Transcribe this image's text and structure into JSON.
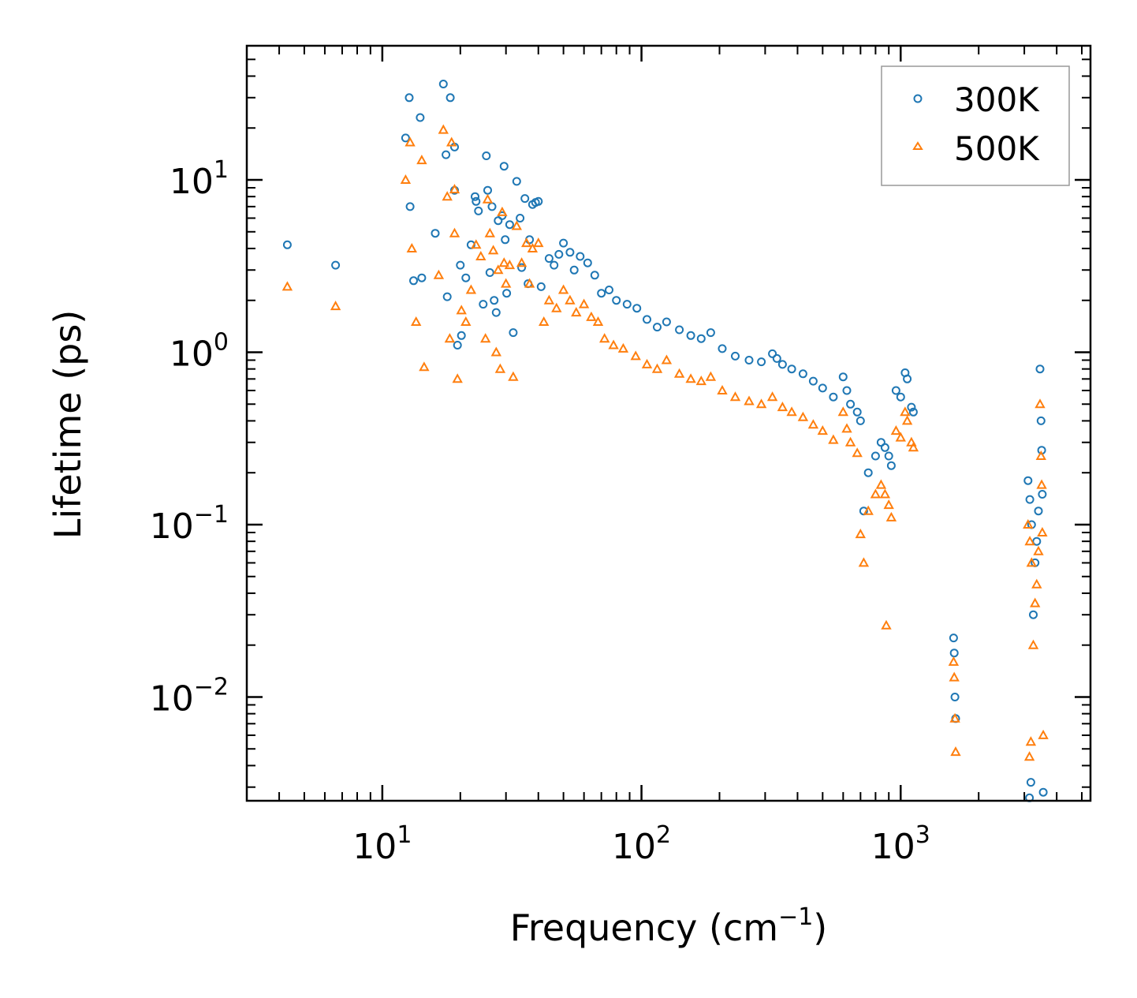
{
  "chart_data": {
    "type": "scatter",
    "title": "",
    "xlabel": "Frequency (cm",
    "xlabel_sup": "−1",
    "xlabel_end": ")",
    "ylabel": "Lifetime (ps)",
    "xscale": "log",
    "yscale": "log",
    "xlim": [
      3.0,
      5400
    ],
    "ylim": [
      0.0025,
      60
    ],
    "x_ticks": [
      {
        "value": 10,
        "base": "10",
        "exp": "1"
      },
      {
        "value": 100,
        "base": "10",
        "exp": "2"
      },
      {
        "value": 1000,
        "base": "10",
        "exp": "3"
      }
    ],
    "y_ticks": [
      {
        "value": 10,
        "base": "10",
        "exp": "1"
      },
      {
        "value": 1,
        "base": "10",
        "exp": "0"
      },
      {
        "value": 0.1,
        "base": "10",
        "exp": "−1"
      },
      {
        "value": 0.01,
        "base": "10",
        "exp": "−2"
      }
    ],
    "legend_position": "top-right",
    "series": [
      {
        "name": "300K",
        "marker": "circle",
        "color": "#1f77b4",
        "points": [
          [
            4.3,
            4.2
          ],
          [
            6.6,
            3.2
          ],
          [
            12.3,
            17.5
          ],
          [
            12.7,
            30
          ],
          [
            12.8,
            7.0
          ],
          [
            13.2,
            2.6
          ],
          [
            14.0,
            23
          ],
          [
            14.2,
            2.7
          ],
          [
            16.0,
            4.9
          ],
          [
            17.2,
            36
          ],
          [
            17.6,
            14
          ],
          [
            17.8,
            2.1
          ],
          [
            18.3,
            30
          ],
          [
            19.0,
            15.5
          ],
          [
            19.0,
            8.7
          ],
          [
            19.5,
            1.1
          ],
          [
            20.0,
            3.2
          ],
          [
            20.2,
            1.25
          ],
          [
            21.0,
            2.7
          ],
          [
            22.0,
            4.2
          ],
          [
            22.8,
            8.0
          ],
          [
            23.0,
            7.5
          ],
          [
            23.5,
            6.6
          ],
          [
            24.5,
            1.9
          ],
          [
            25.2,
            13.8
          ],
          [
            25.5,
            8.7
          ],
          [
            26.0,
            2.9
          ],
          [
            26.5,
            7.0
          ],
          [
            27.0,
            2.0
          ],
          [
            27.5,
            1.7
          ],
          [
            28.0,
            5.8
          ],
          [
            29.0,
            6.2
          ],
          [
            29.5,
            12
          ],
          [
            29.8,
            4.5
          ],
          [
            30.2,
            2.2
          ],
          [
            31.0,
            5.5
          ],
          [
            32.0,
            1.3
          ],
          [
            33.0,
            9.8
          ],
          [
            34.0,
            6.0
          ],
          [
            35.5,
            7.8
          ],
          [
            37.0,
            4.5
          ],
          [
            38.0,
            7.2
          ],
          [
            39.0,
            7.4
          ],
          [
            40.0,
            7.5
          ],
          [
            41.0,
            2.4
          ],
          [
            34.5,
            3.1
          ],
          [
            36.5,
            2.5
          ],
          [
            44.0,
            3.5
          ],
          [
            46.0,
            3.2
          ],
          [
            48.0,
            3.7
          ],
          [
            50.0,
            4.3
          ],
          [
            53.0,
            3.8
          ],
          [
            55.0,
            3.0
          ],
          [
            58.0,
            3.6
          ],
          [
            62.0,
            3.3
          ],
          [
            66.0,
            2.8
          ],
          [
            70.0,
            2.2
          ],
          [
            75.0,
            2.3
          ],
          [
            80.0,
            2.0
          ],
          [
            88.0,
            1.9
          ],
          [
            96.0,
            1.8
          ],
          [
            105.0,
            1.55
          ],
          [
            115.0,
            1.4
          ],
          [
            125.0,
            1.5
          ],
          [
            140.0,
            1.35
          ],
          [
            155.0,
            1.25
          ],
          [
            170.0,
            1.2
          ],
          [
            185.0,
            1.3
          ],
          [
            205.0,
            1.05
          ],
          [
            230.0,
            0.95
          ],
          [
            260.0,
            0.9
          ],
          [
            290.0,
            0.88
          ],
          [
            320.0,
            0.98
          ],
          [
            333.0,
            0.92
          ],
          [
            350.0,
            0.85
          ],
          [
            380.0,
            0.8
          ],
          [
            420.0,
            0.75
          ],
          [
            460.0,
            0.68
          ],
          [
            500.0,
            0.62
          ],
          [
            550.0,
            0.55
          ],
          [
            600.0,
            0.72
          ],
          [
            620.0,
            0.6
          ],
          [
            640.0,
            0.5
          ],
          [
            680.0,
            0.45
          ],
          [
            700.0,
            0.4
          ],
          [
            720.0,
            0.12
          ],
          [
            750.0,
            0.2
          ],
          [
            800.0,
            0.25
          ],
          [
            840.0,
            0.3
          ],
          [
            870.0,
            0.28
          ],
          [
            900.0,
            0.25
          ],
          [
            920.0,
            0.22
          ],
          [
            960.0,
            0.6
          ],
          [
            1000.0,
            0.55
          ],
          [
            1040.0,
            0.76
          ],
          [
            1060.0,
            0.7
          ],
          [
            1100.0,
            0.48
          ],
          [
            1120.0,
            0.45
          ],
          [
            1600.0,
            0.022
          ],
          [
            1610.0,
            0.018
          ],
          [
            1620.0,
            0.01
          ],
          [
            1630.0,
            0.0075
          ],
          [
            3100.0,
            0.18
          ],
          [
            3150.0,
            0.14
          ],
          [
            3200.0,
            0.1
          ],
          [
            3250.0,
            0.03
          ],
          [
            3300.0,
            0.06
          ],
          [
            3350.0,
            0.08
          ],
          [
            3400.0,
            0.12
          ],
          [
            3450.0,
            0.8
          ],
          [
            3480.0,
            0.4
          ],
          [
            3500.0,
            0.27
          ],
          [
            3520.0,
            0.15
          ],
          [
            3550.0,
            0.0028
          ],
          [
            3140.0,
            0.0026
          ],
          [
            3180.0,
            0.0032
          ]
        ]
      },
      {
        "name": "500K",
        "marker": "triangle",
        "color": "#ff7f0e",
        "points": [
          [
            4.3,
            2.4
          ],
          [
            6.6,
            1.85
          ],
          [
            12.3,
            10
          ],
          [
            12.8,
            16.5
          ],
          [
            13.0,
            4.0
          ],
          [
            13.5,
            1.5
          ],
          [
            14.2,
            13
          ],
          [
            14.5,
            0.82
          ],
          [
            16.5,
            2.8
          ],
          [
            17.2,
            19.5
          ],
          [
            17.8,
            8.0
          ],
          [
            18.2,
            1.2
          ],
          [
            18.5,
            16.5
          ],
          [
            19.0,
            8.8
          ],
          [
            19.0,
            4.9
          ],
          [
            19.5,
            0.7
          ],
          [
            20.2,
            1.75
          ],
          [
            21.0,
            1.5
          ],
          [
            22.0,
            2.3
          ],
          [
            23.0,
            4.2
          ],
          [
            24.0,
            3.6
          ],
          [
            25.0,
            1.2
          ],
          [
            25.5,
            7.7
          ],
          [
            26.0,
            4.9
          ],
          [
            26.8,
            3.9
          ],
          [
            27.5,
            1.0
          ],
          [
            28.0,
            3.0
          ],
          [
            28.5,
            0.8
          ],
          [
            29.0,
            6.5
          ],
          [
            29.5,
            3.3
          ],
          [
            30.0,
            2.5
          ],
          [
            31.0,
            3.2
          ],
          [
            32.0,
            0.72
          ],
          [
            33.0,
            5.4
          ],
          [
            34.5,
            3.3
          ],
          [
            36.0,
            4.3
          ],
          [
            37.0,
            2.5
          ],
          [
            38.0,
            4.0
          ],
          [
            40.0,
            4.3
          ],
          [
            42.0,
            1.5
          ],
          [
            44.0,
            2.0
          ],
          [
            47.0,
            1.8
          ],
          [
            50.0,
            2.3
          ],
          [
            53.0,
            2.0
          ],
          [
            56.0,
            1.7
          ],
          [
            60.0,
            1.9
          ],
          [
            64.0,
            1.6
          ],
          [
            68.0,
            1.5
          ],
          [
            72.0,
            1.2
          ],
          [
            78.0,
            1.1
          ],
          [
            85.0,
            1.05
          ],
          [
            95.0,
            0.95
          ],
          [
            105.0,
            0.85
          ],
          [
            115.0,
            0.8
          ],
          [
            125.0,
            0.9
          ],
          [
            140.0,
            0.75
          ],
          [
            155.0,
            0.7
          ],
          [
            170.0,
            0.68
          ],
          [
            185.0,
            0.72
          ],
          [
            205.0,
            0.6
          ],
          [
            230.0,
            0.55
          ],
          [
            260.0,
            0.52
          ],
          [
            290.0,
            0.5
          ],
          [
            320.0,
            0.55
          ],
          [
            350.0,
            0.48
          ],
          [
            380.0,
            0.45
          ],
          [
            420.0,
            0.42
          ],
          [
            460.0,
            0.38
          ],
          [
            500.0,
            0.35
          ],
          [
            550.0,
            0.31
          ],
          [
            600.0,
            0.45
          ],
          [
            620.0,
            0.36
          ],
          [
            640.0,
            0.3
          ],
          [
            680.0,
            0.26
          ],
          [
            700.0,
            0.088
          ],
          [
            720.0,
            0.06
          ],
          [
            750.0,
            0.12
          ],
          [
            800.0,
            0.15
          ],
          [
            840.0,
            0.17
          ],
          [
            870.0,
            0.15
          ],
          [
            880.0,
            0.026
          ],
          [
            900.0,
            0.13
          ],
          [
            920.0,
            0.11
          ],
          [
            960.0,
            0.35
          ],
          [
            1000.0,
            0.32
          ],
          [
            1040.0,
            0.45
          ],
          [
            1060.0,
            0.4
          ],
          [
            1100.0,
            0.3
          ],
          [
            1120.0,
            0.28
          ],
          [
            1600.0,
            0.016
          ],
          [
            1610.0,
            0.013
          ],
          [
            1620.0,
            0.0075
          ],
          [
            1630.0,
            0.0048
          ],
          [
            3100.0,
            0.1
          ],
          [
            3150.0,
            0.08
          ],
          [
            3200.0,
            0.06
          ],
          [
            3250.0,
            0.02
          ],
          [
            3300.0,
            0.035
          ],
          [
            3350.0,
            0.045
          ],
          [
            3400.0,
            0.07
          ],
          [
            3450.0,
            0.5
          ],
          [
            3480.0,
            0.25
          ],
          [
            3500.0,
            0.17
          ],
          [
            3520.0,
            0.09
          ],
          [
            3550.0,
            0.006
          ],
          [
            3140.0,
            0.0045
          ],
          [
            3180.0,
            0.0055
          ]
        ]
      }
    ]
  }
}
